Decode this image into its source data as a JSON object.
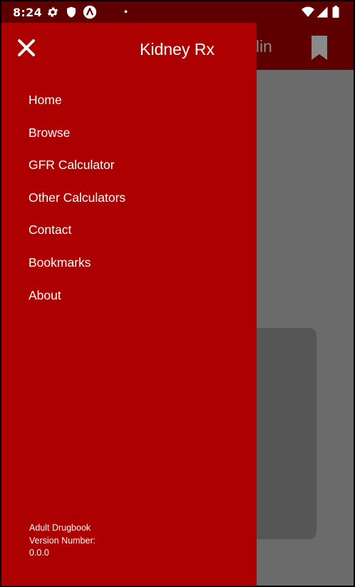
{
  "status_bar": {
    "time": "8:24",
    "icons": [
      "gear-icon",
      "shield-icon",
      "app-badge-icon",
      "dot-icon",
      "wifi-icon",
      "signal-icon",
      "battery-icon"
    ]
  },
  "background_app": {
    "title_partial": "icillin",
    "bookmark_icon": "bookmark-icon"
  },
  "drawer": {
    "title": "Kidney Rx",
    "close_icon": "close-icon",
    "items": [
      {
        "label": "Home"
      },
      {
        "label": "Browse"
      },
      {
        "label": "GFR Calculator"
      },
      {
        "label": "Other Calculators"
      },
      {
        "label": "Contact"
      },
      {
        "label": "Bookmarks"
      },
      {
        "label": "About"
      }
    ],
    "footer": {
      "line1": "Adult Drugbook",
      "line2": "Version Number:",
      "line3": "0.0.0"
    }
  },
  "colors": {
    "drawer_bg": "#ad0000",
    "status_bar_bg": "#5f0000",
    "scrim": "#6b6b6b"
  }
}
